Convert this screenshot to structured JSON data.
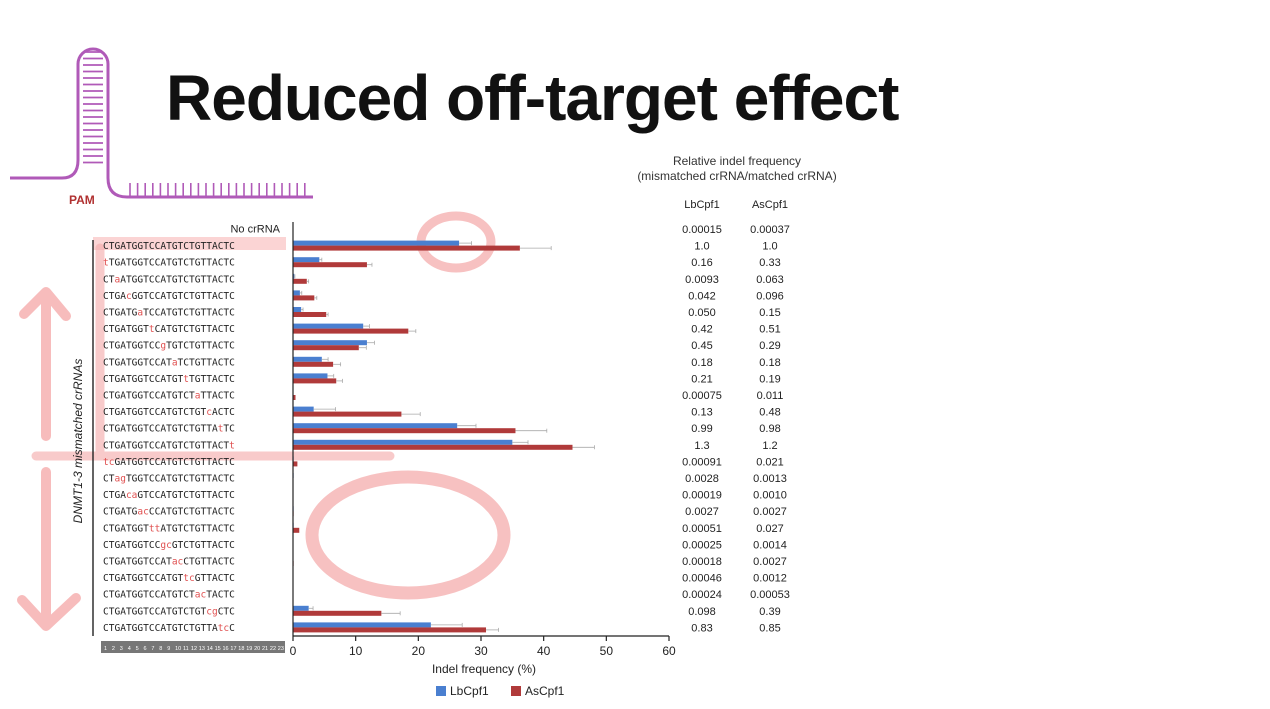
{
  "title": "Reduced off-target effect",
  "diagram": {
    "pam_label": "PAM"
  },
  "relative_table": {
    "title_line1": "Relative indel frequency",
    "title_line2": "(mismatched crRNA/matched crRNA)",
    "col1": "LbCpf1",
    "col2": "AsCpf1"
  },
  "colors": {
    "LbCpf1": "#4a7fd0",
    "AsCpf1": "#b03a3a",
    "mismatch_base": "#e05050",
    "annotation": "#f4a6a6",
    "pam_diagram": "#b05ab8"
  },
  "chart_data": {
    "type": "bar",
    "orientation": "horizontal",
    "xlabel": "Indel frequency (%)",
    "xlim": [
      0,
      60
    ],
    "xticks": [
      0,
      10,
      20,
      30,
      40,
      50,
      60
    ],
    "group_label": "DNMT1-3 mismatched crRNAs",
    "position_numbers": [
      "1",
      "2",
      "3",
      "4",
      "5",
      "6",
      "7",
      "8",
      "9",
      "10",
      "11",
      "12",
      "13",
      "14",
      "15",
      "16",
      "17",
      "18",
      "19",
      "20",
      "21",
      "22",
      "23"
    ],
    "legend": [
      "LbCpf1",
      "AsCpf1"
    ],
    "categories": [
      "No crRNA",
      "CTGATGGTCCATGTCTGTTACTC",
      "tTGATGGTCCATGTCTGTTACTC",
      "CTaATGGTCCATGTCTGTTACTC",
      "CTGAcGGTCCATGTCTGTTACTC",
      "CTGATGaTCCATGTCTGTTACTC",
      "CTGATGGTtCATGTCTGTTACTC",
      "CTGATGGTCCgTGTCTGTTACTC",
      "CTGATGGTCCATaTCTGTTACTC",
      "CTGATGGTCCATGTtTGTTACTC",
      "CTGATGGTCCATGTCTaTTACTC",
      "CTGATGGTCCATGTCTGTcACTC",
      "CTGATGGTCCATGTCTGTTAtTC",
      "CTGATGGTCCATGTCTGTTACTt",
      "tcGATGGTCCATGTCTGTTACTC",
      "CTagTGGTCCATGTCTGTTACTC",
      "CTGAcaGTCCATGTCTGTTACTC",
      "CTGATGacCCATGTCTGTTACTC",
      "CTGATGGTttATGTCTGTTACTC",
      "CTGATGGTCCgcGTCTGTTACTC",
      "CTGATGGTCCATacCTGTTACTC",
      "CTGATGGTCCATGTtcGTTACTC",
      "CTGATGGTCCATGTCTacTACTC",
      "CTGATGGTCCATGTCTGTcgCTC",
      "CTGATGGTCCATGTCTGTTAtcC"
    ],
    "series": [
      {
        "name": "LbCpf1",
        "values": [
          0,
          26.5,
          4.2,
          0.2,
          1.1,
          1.3,
          11.2,
          11.8,
          4.6,
          5.5,
          0.0,
          3.3,
          26.2,
          35.0,
          0.1,
          0.1,
          0.0,
          0.1,
          0.1,
          0.0,
          0.0,
          0.0,
          0.0,
          2.5,
          22.0
        ],
        "errors": [
          0,
          2.0,
          0.4,
          0.1,
          0.3,
          0.3,
          1.0,
          1.2,
          1.0,
          1.0,
          0,
          3.5,
          3.0,
          2.5,
          0,
          0,
          0,
          0,
          0,
          0,
          0,
          0,
          0,
          0.7,
          5.0
        ]
      },
      {
        "name": "AsCpf1",
        "values": [
          0,
          36.2,
          11.8,
          2.2,
          3.4,
          5.3,
          18.4,
          10.5,
          6.4,
          6.9,
          0.4,
          17.3,
          35.5,
          44.6,
          0.7,
          0.05,
          0.04,
          0.1,
          1.0,
          0.05,
          0.1,
          0.05,
          0.02,
          14.1,
          30.8
        ],
        "errors": [
          0,
          5.0,
          0.8,
          0.3,
          0.4,
          0.3,
          1.2,
          1.2,
          1.2,
          1.0,
          0,
          3.0,
          5.0,
          3.5,
          0,
          0,
          0,
          0,
          0,
          0,
          0,
          0,
          0,
          3.0,
          2.0
        ]
      }
    ],
    "relative_values": [
      [
        "0.00015",
        "0.00037"
      ],
      [
        "1.0",
        "1.0"
      ],
      [
        "0.16",
        "0.33"
      ],
      [
        "0.0093",
        "0.063"
      ],
      [
        "0.042",
        "0.096"
      ],
      [
        "0.050",
        "0.15"
      ],
      [
        "0.42",
        "0.51"
      ],
      [
        "0.45",
        "0.29"
      ],
      [
        "0.18",
        "0.18"
      ],
      [
        "0.21",
        "0.19"
      ],
      [
        "0.00075",
        "0.011"
      ],
      [
        "0.13",
        "0.48"
      ],
      [
        "0.99",
        "0.98"
      ],
      [
        "1.3",
        "1.2"
      ],
      [
        "0.00091",
        "0.021"
      ],
      [
        "0.0028",
        "0.0013"
      ],
      [
        "0.00019",
        "0.0010"
      ],
      [
        "0.0027",
        "0.0027"
      ],
      [
        "0.00051",
        "0.027"
      ],
      [
        "0.00025",
        "0.0014"
      ],
      [
        "0.00018",
        "0.0027"
      ],
      [
        "0.00046",
        "0.0012"
      ],
      [
        "0.00024",
        "0.00053"
      ],
      [
        "0.098",
        "0.39"
      ],
      [
        "0.83",
        "0.85"
      ]
    ]
  }
}
